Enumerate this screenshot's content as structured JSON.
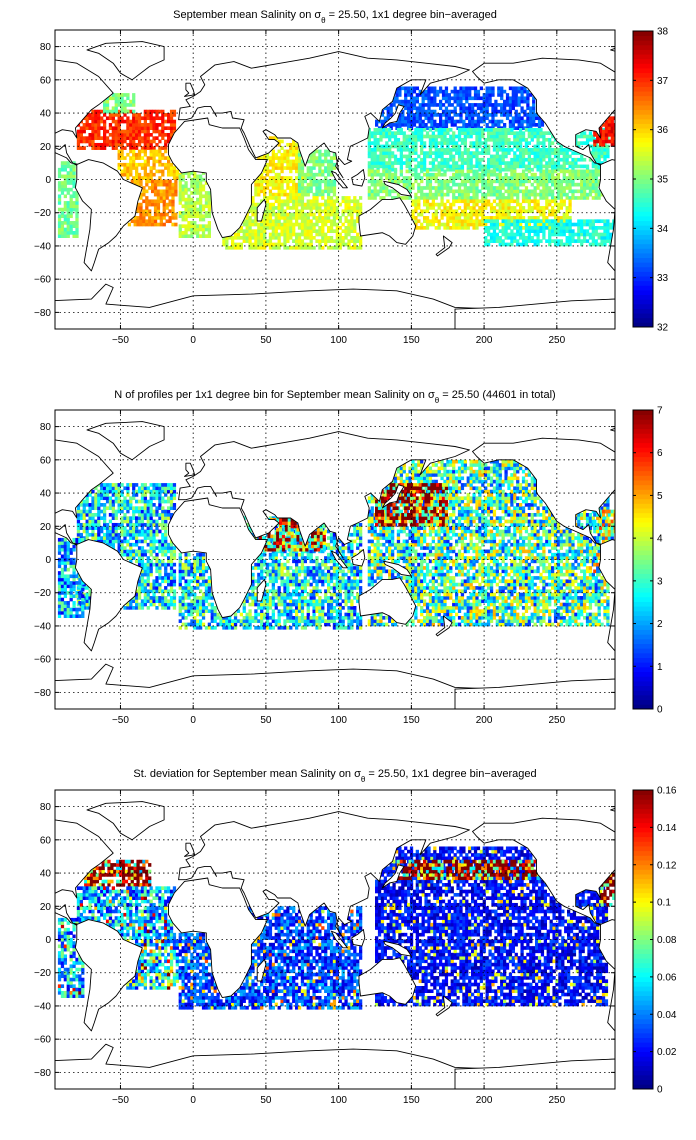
{
  "chart_data": [
    {
      "type": "heatmap",
      "title_main": "September mean Salinity on σ",
      "title_sub": "θ",
      "title_rest": " = 25.50, 1x1 degree bin−averaged",
      "xticks": [
        -50,
        0,
        50,
        100,
        150,
        200,
        250
      ],
      "yticks": [
        80,
        60,
        40,
        20,
        0,
        -20,
        -40,
        -60,
        -80
      ],
      "xlim": [
        -95,
        290
      ],
      "ylim": [
        -90,
        90
      ],
      "grid": true,
      "colorbar": {
        "ticks": [
          38,
          37,
          36,
          35,
          34,
          33,
          32
        ],
        "range": [
          32,
          38
        ]
      },
      "regions": [
        {
          "lon": [
            -80,
            -12
          ],
          "lat": [
            18,
            42
          ],
          "value": 37.0
        },
        {
          "lon": [
            -62,
            -40
          ],
          "lat": [
            40,
            52
          ],
          "value": 35.0
        },
        {
          "lon": [
            -52,
            -8
          ],
          "lat": [
            0,
            18
          ],
          "value": 36.1
        },
        {
          "lon": [
            -45,
            -12
          ],
          "lat": [
            -28,
            0
          ],
          "value": 36.4
        },
        {
          "lon": [
            -93,
            -80
          ],
          "lat": [
            -35,
            10
          ],
          "value": 34.9
        },
        {
          "lon": [
            -10,
            12
          ],
          "lat": [
            -35,
            4
          ],
          "value": 35.3
        },
        {
          "lon": [
            42,
            75
          ],
          "lat": [
            -10,
            25
          ],
          "value": 35.8
        },
        {
          "lon": [
            72,
            98
          ],
          "lat": [
            -10,
            18
          ],
          "value": 35.0
        },
        {
          "lon": [
            20,
            115
          ],
          "lat": [
            -42,
            -10
          ],
          "value": 35.5
        },
        {
          "lon": [
            125,
            240
          ],
          "lat": [
            30,
            55
          ],
          "value": 33.2
        },
        {
          "lon": [
            120,
            285
          ],
          "lat": [
            5,
            30
          ],
          "value": 34.6
        },
        {
          "lon": [
            120,
            285
          ],
          "lat": [
            -12,
            5
          ],
          "value": 35.0
        },
        {
          "lon": [
            150,
            260
          ],
          "lat": [
            -30,
            -12
          ],
          "value": 35.7
        },
        {
          "lon": [
            200,
            290
          ],
          "lat": [
            -40,
            -25
          ],
          "value": 34.4
        },
        {
          "lon": [
            275,
            290
          ],
          "lat": [
            20,
            38
          ],
          "value": 37.2
        }
      ]
    },
    {
      "type": "heatmap",
      "title_main": "N of profiles per 1x1 degree bin for September mean Salinity on σ",
      "title_sub": "θ",
      "title_rest": " = 25.50 (44601 in total)",
      "xticks": [
        -50,
        0,
        50,
        100,
        150,
        200,
        250
      ],
      "yticks": [
        80,
        60,
        40,
        20,
        0,
        -20,
        -40,
        -60,
        -80
      ],
      "xlim": [
        -95,
        290
      ],
      "ylim": [
        -90,
        90
      ],
      "grid": true,
      "colorbar": {
        "ticks": [
          7,
          6,
          5,
          4,
          3,
          2,
          1,
          0
        ],
        "range": [
          0,
          7
        ]
      },
      "regions": [
        {
          "lon": [
            -80,
            -12
          ],
          "lat": [
            -30,
            45
          ],
          "value": 2.5
        },
        {
          "lon": [
            -93,
            -75
          ],
          "lat": [
            -35,
            12
          ],
          "value": 2.2
        },
        {
          "lon": [
            -10,
            115
          ],
          "lat": [
            -42,
            25
          ],
          "value": 2.6
        },
        {
          "lon": [
            45,
            90
          ],
          "lat": [
            5,
            25
          ],
          "value": 5.5
        },
        {
          "lon": [
            120,
            285
          ],
          "lat": [
            -40,
            60
          ],
          "value": 3.0
        },
        {
          "lon": [
            125,
            175
          ],
          "lat": [
            20,
            45
          ],
          "value": 6.3
        },
        {
          "lon": [
            275,
            290
          ],
          "lat": [
            -10,
            30
          ],
          "value": 3.5
        }
      ]
    },
    {
      "type": "heatmap",
      "title_main": "St. deviation for September mean Salinity on σ",
      "title_sub": "θ",
      "title_rest": " = 25.50, 1x1 degree bin−averaged",
      "xticks": [
        -50,
        0,
        50,
        100,
        150,
        200,
        250
      ],
      "yticks": [
        80,
        60,
        40,
        20,
        0,
        -20,
        -40,
        -60,
        -80
      ],
      "xlim": [
        -95,
        290
      ],
      "ylim": [
        -90,
        90
      ],
      "grid": true,
      "colorbar": {
        "ticks": [
          0.16,
          0.14,
          0.12,
          0.1,
          0.08,
          0.06,
          0.04,
          0.02,
          0
        ],
        "range": [
          0,
          0.16
        ]
      },
      "regions": [
        {
          "lon": [
            -75,
            -30
          ],
          "lat": [
            32,
            48
          ],
          "value": 0.15
        },
        {
          "lon": [
            -80,
            -12
          ],
          "lat": [
            0,
            32
          ],
          "value": 0.05
        },
        {
          "lon": [
            -93,
            -75
          ],
          "lat": [
            -35,
            12
          ],
          "value": 0.05
        },
        {
          "lon": [
            -50,
            -10
          ],
          "lat": [
            -30,
            0
          ],
          "value": 0.06
        },
        {
          "lon": [
            -10,
            115
          ],
          "lat": [
            -42,
            20
          ],
          "value": 0.03
        },
        {
          "lon": [
            125,
            285
          ],
          "lat": [
            -40,
            55
          ],
          "value": 0.02
        },
        {
          "lon": [
            140,
            240
          ],
          "lat": [
            36,
            48
          ],
          "value": 0.15
        },
        {
          "lon": [
            280,
            290
          ],
          "lat": [
            20,
            40
          ],
          "value": 0.14
        }
      ]
    }
  ]
}
